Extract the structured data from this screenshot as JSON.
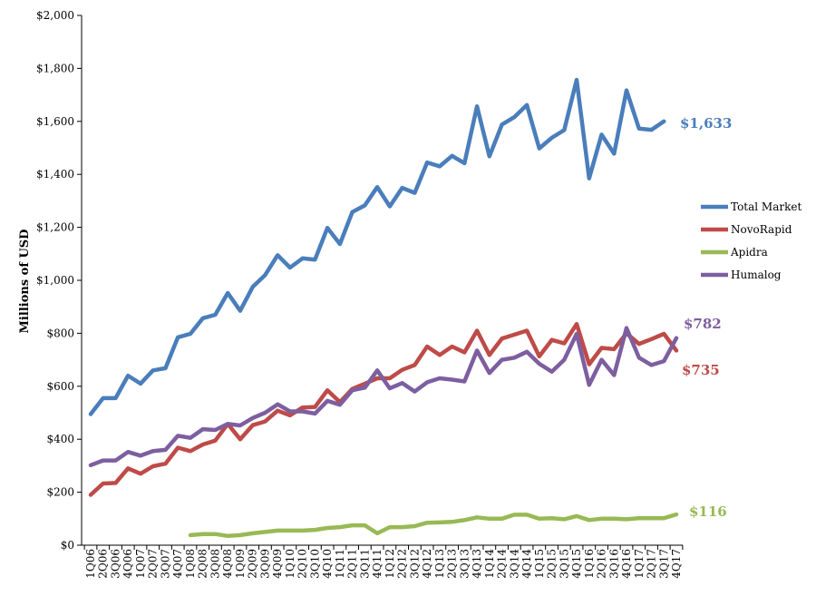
{
  "chart_data": {
    "type": "line",
    "ylabel": "Millions of USD",
    "ylim": [
      0,
      2000
    ],
    "y_ticks": [
      "$0",
      "$200",
      "$400",
      "$600",
      "$800",
      "$1,000",
      "$1,200",
      "$1,400",
      "$1,600",
      "$1,800",
      "$2,000"
    ],
    "y_tick_values": [
      0,
      200,
      400,
      600,
      800,
      1000,
      1200,
      1400,
      1600,
      1800,
      2000
    ],
    "grid": false,
    "legend_position": "right",
    "categories": [
      "1Q06",
      "2Q06",
      "3Q06",
      "4Q06",
      "1Q07",
      "2Q07",
      "3Q07",
      "4Q07",
      "1Q08",
      "2Q08",
      "3Q08",
      "4Q08",
      "1Q09",
      "2Q09",
      "3Q09",
      "4Q09",
      "1Q10",
      "2Q10",
      "3Q10",
      "4Q10",
      "1Q11",
      "2Q11",
      "3Q11",
      "4Q11",
      "1Q12",
      "2Q12",
      "3Q12",
      "4Q12",
      "1Q13",
      "2Q13",
      "3Q13",
      "4Q13",
      "1Q14",
      "2Q14",
      "3Q14",
      "4Q14",
      "1Q15",
      "2Q15",
      "3Q15",
      "4Q15",
      "1Q16",
      "2Q16",
      "3Q16",
      "4Q16",
      "1Q17",
      "2Q17",
      "3Q17",
      "4Q17"
    ],
    "series": [
      {
        "name": "Total Market",
        "color": "#4a7ebb",
        "values": [
          495,
          555,
          555,
          640,
          610,
          660,
          668,
          785,
          798,
          857,
          870,
          952,
          885,
          975,
          1020,
          1095,
          1048,
          1083,
          1078,
          1198,
          1137,
          1258,
          1283,
          1352,
          1279,
          1349,
          1330,
          1445,
          1430,
          1470,
          1442,
          1657,
          1468,
          1588,
          1616,
          1662,
          1498,
          1538,
          1567,
          1757,
          1385,
          1550,
          1478,
          1717,
          1573,
          1568,
          1600,
          null
        ],
        "end_label": "$1,633"
      },
      {
        "name": "NovoRapid",
        "color": "#be4b48",
        "values": [
          190,
          233,
          235,
          290,
          270,
          298,
          308,
          368,
          355,
          380,
          395,
          458,
          400,
          453,
          467,
          508,
          490,
          520,
          522,
          585,
          540,
          590,
          610,
          630,
          630,
          662,
          680,
          750,
          718,
          750,
          728,
          810,
          718,
          780,
          795,
          810,
          713,
          775,
          762,
          835,
          683,
          745,
          740,
          800,
          760,
          778,
          798,
          735
        ],
        "end_label": "$735"
      },
      {
        "name": "Apidra",
        "color": "#98b954",
        "values": [
          null,
          null,
          null,
          null,
          null,
          null,
          null,
          null,
          38,
          42,
          42,
          35,
          38,
          45,
          50,
          55,
          55,
          55,
          58,
          65,
          68,
          75,
          75,
          45,
          68,
          68,
          72,
          85,
          86,
          88,
          95,
          105,
          100,
          100,
          115,
          115,
          100,
          102,
          98,
          110,
          95,
          100,
          100,
          98,
          102,
          102,
          102,
          116
        ],
        "end_label": "$116"
      },
      {
        "name": "Humalog",
        "color": "#7d5fa0",
        "values": [
          302,
          320,
          320,
          352,
          338,
          355,
          360,
          413,
          405,
          438,
          435,
          458,
          452,
          480,
          500,
          532,
          505,
          505,
          497,
          545,
          530,
          585,
          595,
          660,
          592,
          612,
          580,
          615,
          630,
          625,
          618,
          735,
          650,
          700,
          708,
          730,
          685,
          655,
          700,
          798,
          605,
          700,
          642,
          820,
          708,
          680,
          695,
          782
        ],
        "end_label": "$782"
      }
    ]
  }
}
